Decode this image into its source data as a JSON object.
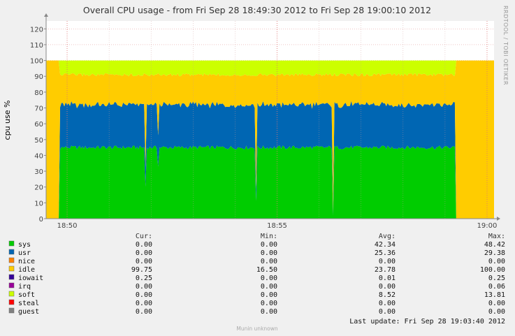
{
  "chart_data": {
    "type": "area",
    "title": "Overall CPU usage - from Fri Sep 28 18:49:30 2012 to Fri Sep 28 19:00:10 2012",
    "ylabel": "cpu use %",
    "ylim": [
      0,
      125
    ],
    "y_ticks": [
      "0",
      "10",
      "20",
      "30",
      "40",
      "50",
      "60",
      "70",
      "80",
      "90",
      "100",
      "110",
      "120"
    ],
    "x_ticks": [
      "18:50",
      "18:55",
      "19:00"
    ],
    "watermark": "RRDTOOL / TOBI OETIKER",
    "colors": {
      "background": "#f0f0f0",
      "plot_bg": "#ffffff",
      "grid_minor": "#d8d8d8",
      "grid_major": "#e07070"
    },
    "series": [
      {
        "name": "sys",
        "color": "#00cc00",
        "typical": 45
      },
      {
        "name": "usr",
        "color": "#0066b3",
        "typical": 27
      },
      {
        "name": "nice",
        "color": "#ff8000",
        "typical": 0
      },
      {
        "name": "idle",
        "color": "#ffcc00",
        "typical": 19
      },
      {
        "name": "iowait",
        "color": "#330099",
        "typical": 0
      },
      {
        "name": "irq",
        "color": "#990099",
        "typical": 0
      },
      {
        "name": "soft",
        "color": "#ccff00",
        "typical": 9
      },
      {
        "name": "steal",
        "color": "#ff0000",
        "typical": 0
      },
      {
        "name": "guest",
        "color": "#808080",
        "typical": 0
      }
    ],
    "legend_headers": [
      "Cur:",
      "Min:",
      "Avg:",
      "Max:"
    ],
    "legend_rows": [
      {
        "name": "sys",
        "cur": "0.00",
        "min": "0.00",
        "avg": "42.34",
        "max": "48.42"
      },
      {
        "name": "usr",
        "cur": "0.00",
        "min": "0.00",
        "avg": "25.36",
        "max": "29.38"
      },
      {
        "name": "nice",
        "cur": "0.00",
        "min": "0.00",
        "avg": "0.00",
        "max": "0.00"
      },
      {
        "name": "idle",
        "cur": "99.75",
        "min": "16.50",
        "avg": "23.78",
        "max": "100.00"
      },
      {
        "name": "iowait",
        "cur": "0.25",
        "min": "0.00",
        "avg": "0.01",
        "max": "0.25"
      },
      {
        "name": "irq",
        "cur": "0.00",
        "min": "0.00",
        "avg": "0.00",
        "max": "0.06"
      },
      {
        "name": "soft",
        "cur": "0.00",
        "min": "0.00",
        "avg": "8.52",
        "max": "13.81"
      },
      {
        "name": "steal",
        "cur": "0.00",
        "min": "0.00",
        "avg": "0.00",
        "max": "0.00"
      },
      {
        "name": "guest",
        "cur": "0.00",
        "min": "0.00",
        "avg": "0.00",
        "max": "0.00"
      }
    ],
    "last_update": "Last update:  Fri Sep 28 19:03:40 2012",
    "footer": "Munin unknown"
  }
}
